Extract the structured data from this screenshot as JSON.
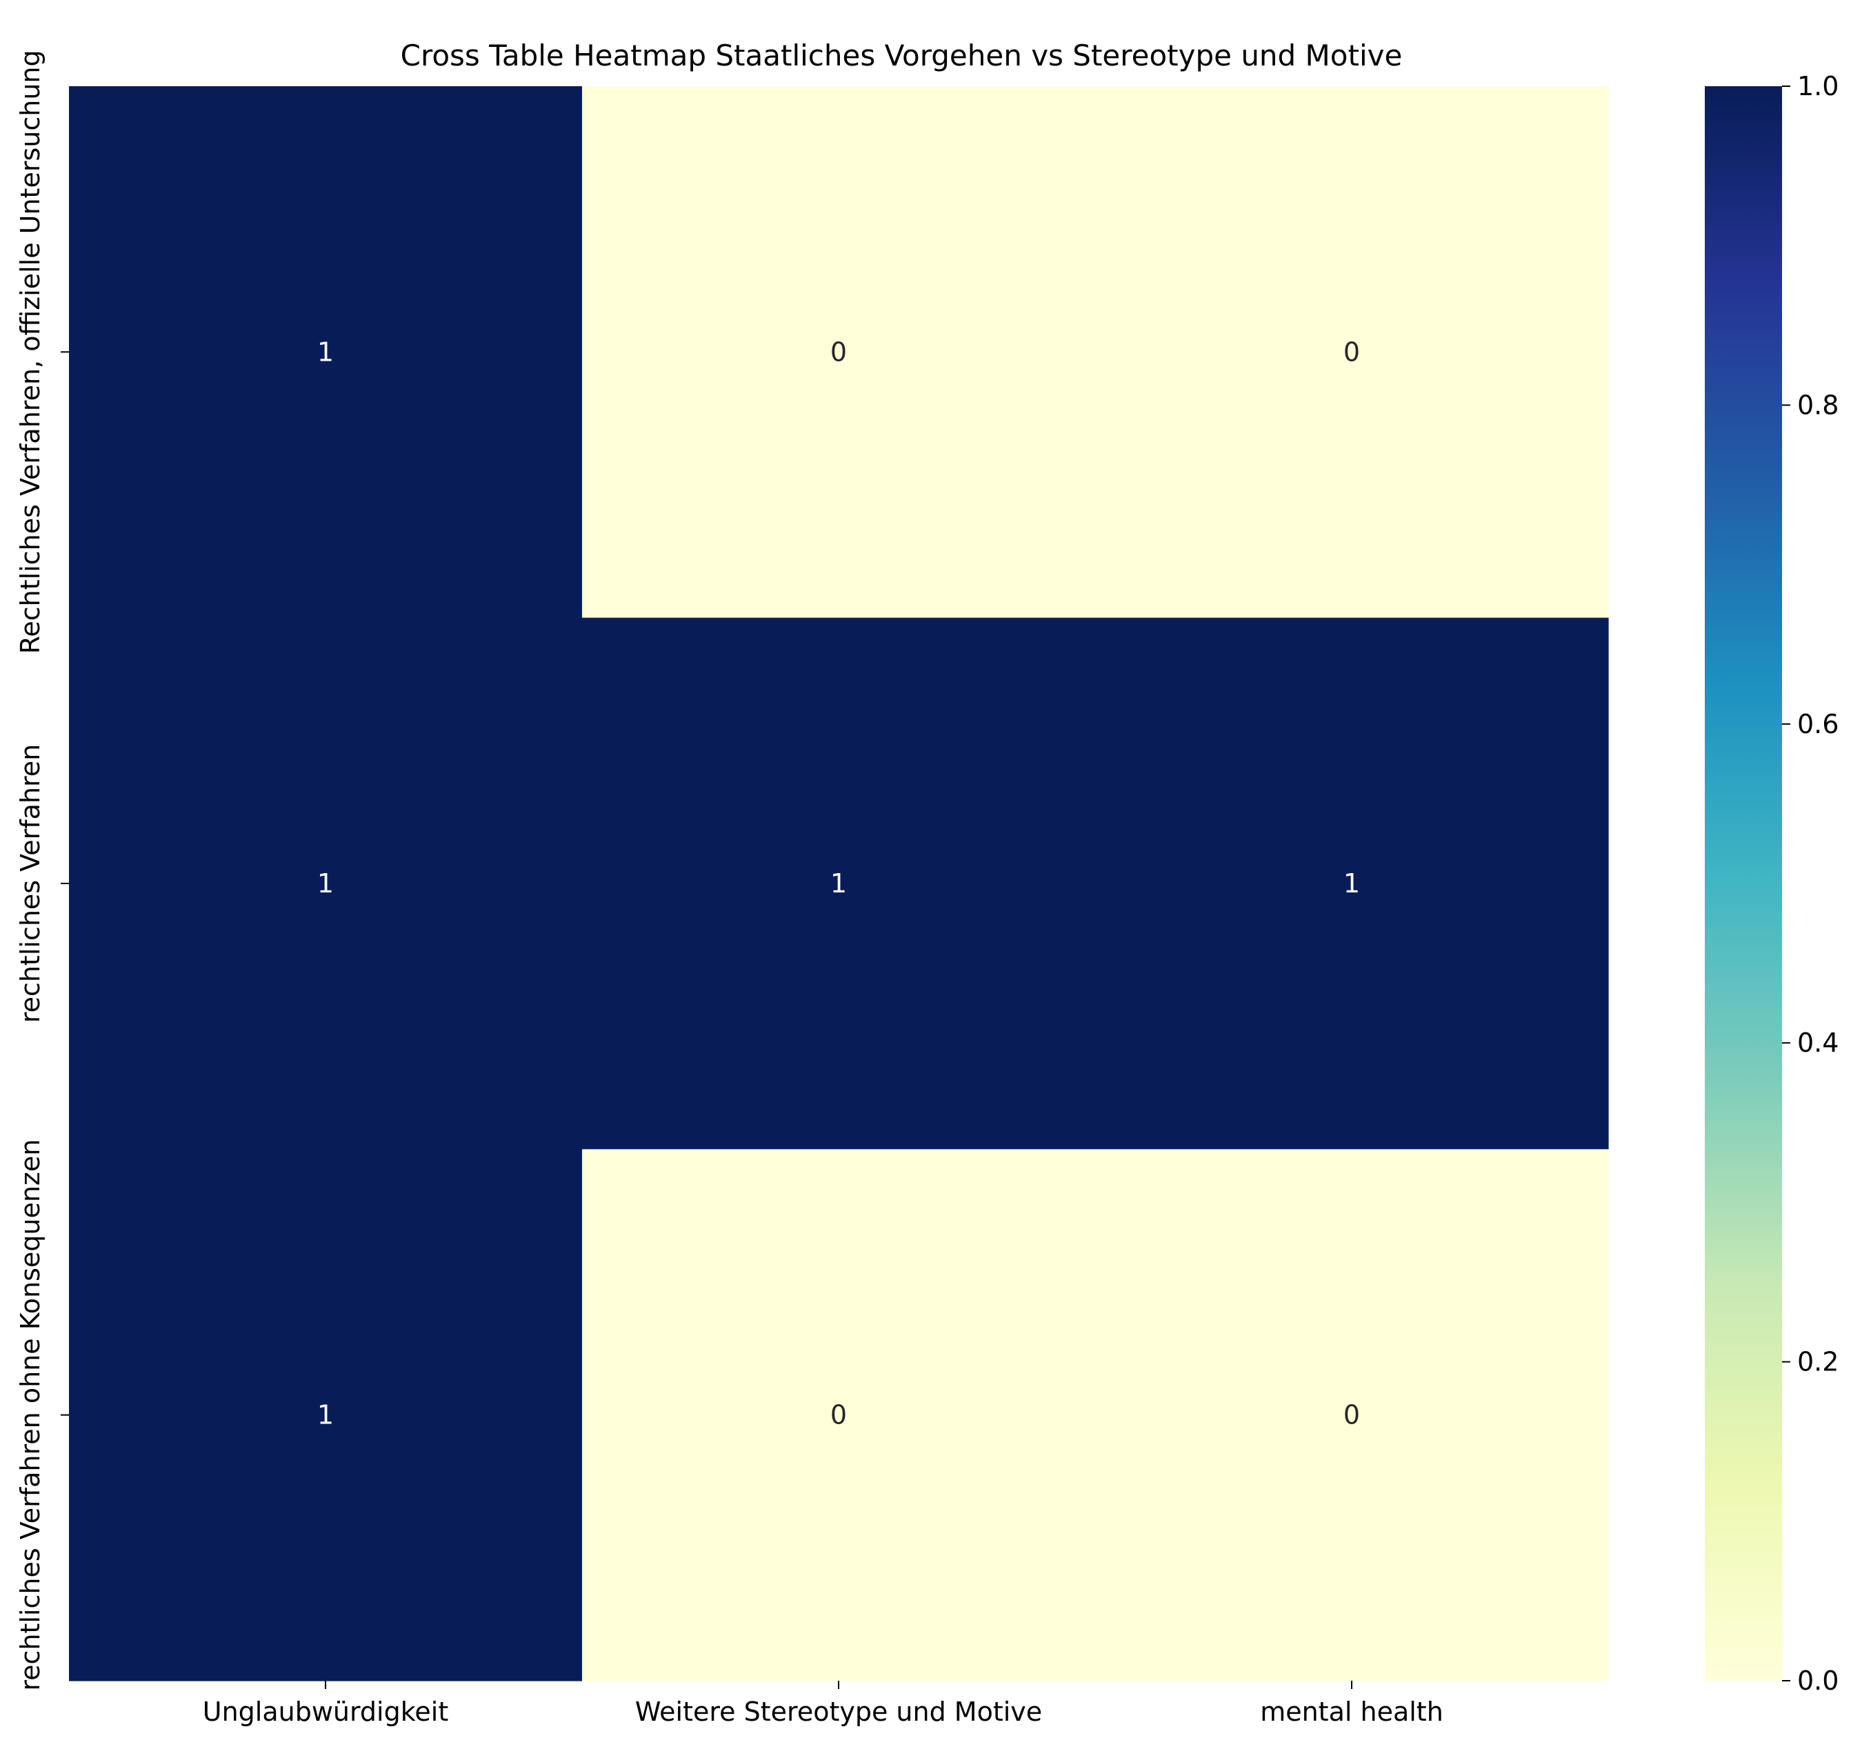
{
  "chart_data": {
    "type": "heatmap",
    "title": "Cross Table Heatmap Staatliches Vorgehen vs Stereotype und Motive",
    "xlabel": "",
    "ylabel": "",
    "x_categories": [
      "Unglaubwürdigkeit",
      "Weitere Stereotype und Motive",
      "mental health"
    ],
    "y_categories": [
      "Rechtliches Verfahren, offizielle Untersuchung",
      "rechtliches Verfahren",
      "rechtliches Verfahren ohne Konsequenzen"
    ],
    "values": [
      [
        1,
        0,
        0
      ],
      [
        1,
        1,
        1
      ],
      [
        1,
        0,
        0
      ]
    ],
    "annotations": true,
    "colormap": "YlGnBu",
    "colorbar": {
      "range": [
        0,
        1
      ],
      "ticks": [
        0.0,
        0.2,
        0.4,
        0.6,
        0.8,
        1.0
      ],
      "tick_labels": [
        "0.0",
        "0.2",
        "0.4",
        "0.6",
        "0.8",
        "1.0"
      ],
      "stops": [
        "#ffffd9",
        "#edf8b1",
        "#c7e9b4",
        "#7fcdbb",
        "#41b6c4",
        "#1d91c0",
        "#225ea8",
        "#253494",
        "#081d58"
      ]
    },
    "annotation_colors": {
      "on_dark": "#ffffff",
      "on_light": "#262626"
    },
    "grid": false
  }
}
